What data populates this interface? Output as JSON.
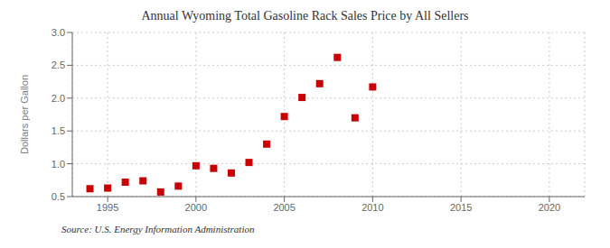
{
  "chart_data": {
    "type": "scatter",
    "title": "Annual Wyoming Total Gasoline Rack Sales Price by All Sellers",
    "ylabel": "Dollars per Gallon",
    "annotation": "Source: U.S. Energy Information Administration",
    "x": [
      1994,
      1995,
      1996,
      1997,
      1998,
      1999,
      2000,
      2001,
      2002,
      2003,
      2004,
      2005,
      2006,
      2007,
      2008,
      2009,
      2010
    ],
    "values": [
      0.62,
      0.63,
      0.72,
      0.74,
      0.57,
      0.66,
      0.97,
      0.93,
      0.86,
      1.02,
      1.3,
      1.72,
      2.01,
      2.22,
      2.62,
      1.7,
      2.17
    ],
    "color": "#cc0000",
    "marker": "square",
    "xlim": [
      1993,
      2022
    ],
    "ylim": [
      0.5,
      3.0
    ],
    "xticks": [
      1995,
      2000,
      2005,
      2010,
      2015,
      2020
    ],
    "yticks": [
      0.5,
      {
        "value": 1,
        "label": "1.0"
      },
      1.5,
      {
        "value": 2,
        "label": "2.0"
      },
      2.5,
      {
        "value": 3,
        "label": "3.0"
      }
    ],
    "grid": true
  }
}
